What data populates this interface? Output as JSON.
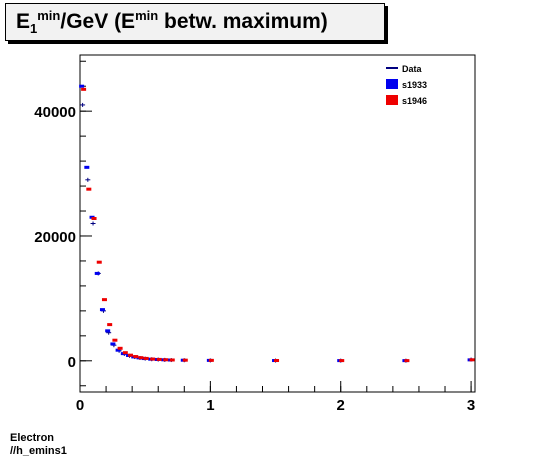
{
  "title": {
    "main": "E",
    "sub": "1",
    "sup1": "min",
    "middle": "/GeV (E",
    "sup2": "min",
    "end": " betw. maximum)"
  },
  "footer": {
    "line1": "Electron",
    "line2": "//h_emins1"
  },
  "colors": {
    "data": "#000080",
    "s1933": "#0000ee",
    "s1946": "#ee0000"
  },
  "chart_data": {
    "type": "scatter",
    "xlim": [
      0,
      3.03
    ],
    "ylim": [
      -5000,
      49000
    ],
    "xticks": [
      0,
      1,
      2,
      3
    ],
    "xtick_labels": [
      "0",
      "1",
      "2",
      "3"
    ],
    "yticks": [
      0,
      20000,
      40000
    ],
    "ytick_labels": [
      "0",
      "20000",
      "40000"
    ],
    "legend": [
      "Data",
      "s1933",
      "s1946"
    ],
    "legend_position": "top-right",
    "grid": false,
    "x": [
      0.02,
      0.06,
      0.1,
      0.14,
      0.18,
      0.22,
      0.26,
      0.3,
      0.34,
      0.38,
      0.42,
      0.46,
      0.5,
      0.55,
      0.6,
      0.65,
      0.7,
      0.8,
      1.0,
      1.5,
      2.0,
      2.5,
      3.0
    ],
    "series": [
      {
        "name": "Data",
        "values": [
          41000,
          29000,
          22000,
          14000,
          8000,
          4500,
          2500,
          1600,
          1100,
          800,
          600,
          450,
          350,
          250,
          200,
          150,
          120,
          90,
          60,
          40,
          30,
          25,
          200
        ]
      },
      {
        "name": "s1933",
        "values": [
          44000,
          31000,
          23000,
          14000,
          8200,
          4800,
          2700,
          1700,
          1150,
          850,
          620,
          470,
          360,
          260,
          210,
          160,
          125,
          95,
          65,
          42,
          32,
          26,
          150
        ]
      },
      {
        "name": "s1946",
        "values": [
          43500,
          27500,
          22800,
          15800,
          9800,
          5800,
          3300,
          2000,
          1300,
          900,
          680,
          500,
          380,
          280,
          220,
          170,
          130,
          100,
          70,
          45,
          34,
          28,
          160
        ]
      }
    ]
  }
}
